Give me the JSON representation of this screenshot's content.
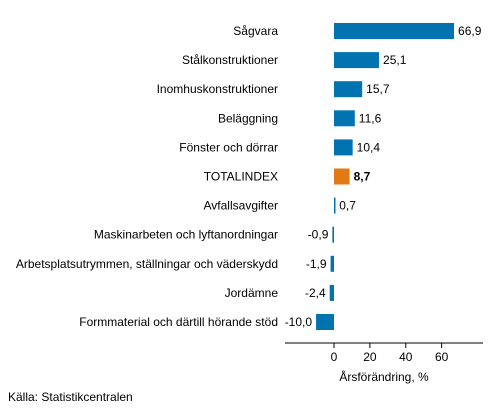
{
  "chart_data": {
    "type": "bar",
    "orientation": "horizontal",
    "categories": [
      "Sågvara",
      "Stålkonstruktioner",
      "Inomhuskonstruktioner",
      "Beläggning",
      "Fönster och dörrar",
      "TOTALINDEX",
      "Avfallsavgifter",
      "Maskinarbeten och lyftanordningar",
      "Arbetsplatsutrymmen, ställningar och väderskydd",
      "Jordämne",
      "Formmaterial och därtill hörande stöd"
    ],
    "values": [
      66.9,
      25.1,
      15.7,
      11.6,
      10.4,
      8.7,
      0.7,
      -0.9,
      -1.9,
      -2.4,
      -10.0
    ],
    "value_labels": [
      "66,9",
      "25,1",
      "15,7",
      "11,6",
      "10,4",
      "8,7",
      "0,7",
      "-0,9",
      "-1,9",
      "-2,4",
      "-10,0"
    ],
    "highlight_category": "TOTALINDEX",
    "xlabel": "Årsförändring, %",
    "ylabel": "",
    "title": "",
    "xlim": [
      -28,
      85
    ],
    "xticks": [
      0,
      20,
      40,
      60
    ],
    "xtick_labels": [
      "0",
      "20",
      "40",
      "60"
    ],
    "grid": false,
    "colors": {
      "bar": "#0073b0",
      "highlight": "#e17a12",
      "axis": "#000000"
    }
  },
  "source": "Källa: Statistikcentralen"
}
